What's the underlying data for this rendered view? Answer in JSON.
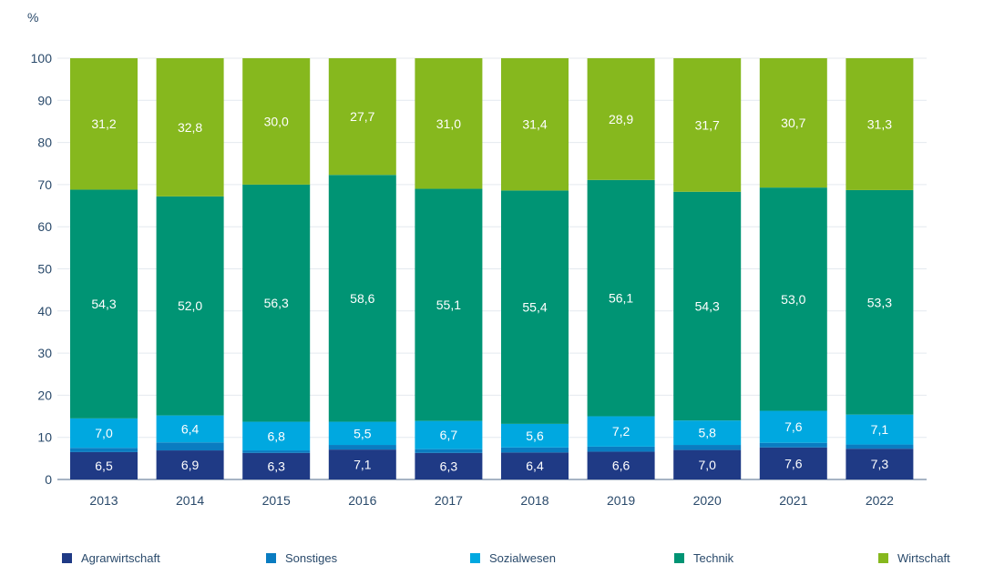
{
  "chart_data": {
    "type": "bar",
    "stacked": true,
    "title": "",
    "xlabel": "",
    "ylabel": "%",
    "ylim": [
      0,
      100
    ],
    "yticks": [
      0,
      10,
      20,
      30,
      40,
      50,
      60,
      70,
      80,
      90,
      100
    ],
    "grid": true,
    "legend_position": "bottom",
    "categories": [
      "2013",
      "2014",
      "2015",
      "2016",
      "2017",
      "2018",
      "2019",
      "2020",
      "2021",
      "2022"
    ],
    "series": [
      {
        "name": "Agrarwirtschaft",
        "color": "#1f3a85",
        "labeled": true,
        "values": [
          6.5,
          6.9,
          6.3,
          7.1,
          6.3,
          6.4,
          6.6,
          7.0,
          7.6,
          7.3
        ]
      },
      {
        "name": "Sonstiges",
        "color": "#0a7cc1",
        "labeled": false,
        "values": [
          1.0,
          1.9,
          0.6,
          1.1,
          0.9,
          1.2,
          1.2,
          1.2,
          1.1,
          1.0
        ]
      },
      {
        "name": "Sozialwesen",
        "color": "#00a8e0",
        "labeled": true,
        "values": [
          7.0,
          6.4,
          6.8,
          5.5,
          6.7,
          5.6,
          7.2,
          5.8,
          7.6,
          7.1
        ]
      },
      {
        "name": "Technik",
        "color": "#009474",
        "labeled": true,
        "values": [
          54.3,
          52.0,
          56.3,
          58.6,
          55.1,
          55.4,
          56.1,
          54.3,
          53.0,
          53.3
        ]
      },
      {
        "name": "Wirtschaft",
        "color": "#86b81e",
        "labeled": true,
        "values": [
          31.2,
          32.8,
          30.0,
          27.7,
          31.0,
          31.4,
          28.9,
          31.7,
          30.7,
          31.3
        ]
      }
    ],
    "decimal_separator": ","
  },
  "colors": {
    "axis_text": "#2a4a6b",
    "gridline": "#e4e9ef",
    "baseline": "#8a9bb0"
  }
}
